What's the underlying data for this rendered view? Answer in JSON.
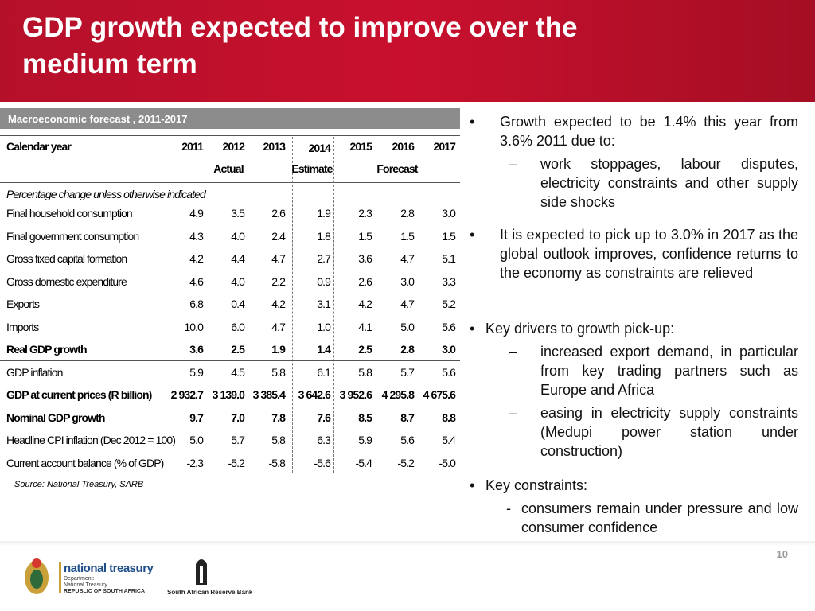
{
  "header": {
    "title": "GDP growth expected to improve over the medium term"
  },
  "table": {
    "caption": "Macroeconomic forecast , 2011-2017",
    "columns": [
      "Calendar year",
      "2011",
      "2012",
      "2013",
      "2014",
      "2015",
      "2016",
      "2017"
    ],
    "groups": [
      "Actual",
      "Estimate",
      "Forecast"
    ],
    "note": "Percentage change unless otherwise indicated",
    "rows": [
      {
        "cells": [
          "Final household consumption",
          "4.9",
          "3.5",
          "2.6",
          "1.9",
          "2.3",
          "2.8",
          "3.0"
        ],
        "bold": false
      },
      {
        "cells": [
          "Final government consumption",
          "4.3",
          "4.0",
          "2.4",
          "1.8",
          "1.5",
          "1.5",
          "1.5"
        ],
        "bold": false
      },
      {
        "cells": [
          "Gross fixed capital formation",
          "4.2",
          "4.4",
          "4.7",
          "2.7",
          "3.6",
          "4.7",
          "5.1"
        ],
        "bold": false
      },
      {
        "cells": [
          "Gross domestic expenditure",
          "4.6",
          "4.0",
          "2.2",
          "0.9",
          "2.6",
          "3.0",
          "3.3"
        ],
        "bold": false
      },
      {
        "cells": [
          "Exports",
          "6.8",
          "0.4",
          "4.2",
          "3.1",
          "4.2",
          "4.7",
          "5.2"
        ],
        "bold": false
      },
      {
        "cells": [
          "Imports",
          "10.0",
          "6.0",
          "4.7",
          "1.0",
          "4.1",
          "5.0",
          "5.6"
        ],
        "bold": false
      },
      {
        "cells": [
          "Real GDP growth",
          "3.6",
          "2.5",
          "1.9",
          "1.4",
          "2.5",
          "2.8",
          "3.0"
        ],
        "bold": true
      },
      {
        "cells": [
          "GDP inflation",
          "5.9",
          "4.5",
          "5.8",
          "6.1",
          "5.8",
          "5.7",
          "5.6"
        ],
        "bold": false
      },
      {
        "cells": [
          "GDP at current prices (R billion)",
          "2 932.7",
          "3 139.0",
          "3 385.4",
          "3 642.6",
          "3 952.6",
          "4 295.8",
          "4 675.6"
        ],
        "bold": true
      },
      {
        "cells": [
          "Nominal GDP growth",
          "9.7",
          "7.0",
          "7.8",
          "7.6",
          "8.5",
          "8.7",
          "8.8"
        ],
        "bold": true
      },
      {
        "cells": [
          "Headline CPI inflation (Dec 2012 = 100)",
          "5.0",
          "5.7",
          "5.8",
          "6.3",
          "5.9",
          "5.6",
          "5.4"
        ],
        "bold": false
      },
      {
        "cells": [
          "Current account balance (% of GDP)",
          "-2.3",
          "-5.2",
          "-5.8",
          "-5.6",
          "-5.4",
          "-5.2",
          "-5.0"
        ],
        "bold": false
      }
    ]
  },
  "source": "Source: National Treasury, SARB",
  "bullets": [
    {
      "text": "Growth expected to be 1.4% this year from 3.6% 2011 due to:",
      "items": [
        "work stoppages, labour disputes, electricity constraints and other supply side shocks"
      ]
    },
    {
      "text": "It is expected to pick up to 3.0% in 2017 as the global outlook improves, confidence returns to the economy as constraints are relieved",
      "items": []
    },
    {
      "text": "Key drivers to growth pick-up:",
      "items": [
        "increased export demand, in particular from key trading partners such as Europe and Africa",
        "easing in electricity supply constraints (Medupi power station under construction)"
      ]
    },
    {
      "text": "Key constraints:",
      "items": [
        "consumers remain under pressure and low consumer confidence"
      ]
    }
  ],
  "footer": {
    "page": "10",
    "logo1": "national treasury",
    "logo1_sub": [
      "Department:",
      "National Treasury",
      "REPUBLIC OF SOUTH AFRICA"
    ],
    "logo2": "South African Reserve Bank"
  }
}
